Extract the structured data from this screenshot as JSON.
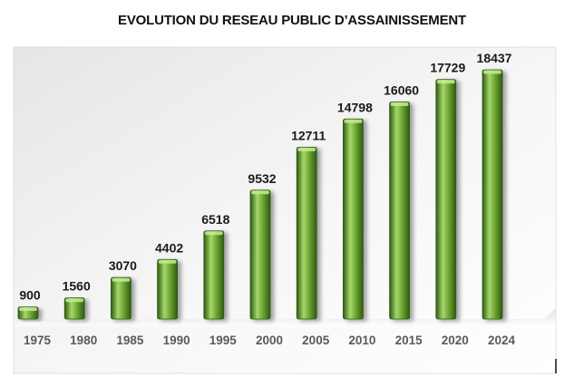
{
  "chart_data": {
    "type": "bar",
    "title": "EVOLUTION DU RESEAU PUBLIC D’ASSAINISSEMENT",
    "xlabel": "",
    "ylabel": "",
    "categories": [
      "1975",
      "1980",
      "1985",
      "1990",
      "1995",
      "2000",
      "2005",
      "2010",
      "2015",
      "2020",
      "2024"
    ],
    "values": [
      900,
      1560,
      3070,
      4402,
      6518,
      9532,
      12711,
      14798,
      16060,
      17729,
      18437
    ],
    "value_labels": [
      "900",
      "1560",
      "3070",
      "4402",
      "6518",
      "9532",
      "12711",
      "14798",
      "16060",
      "17729",
      "18437"
    ],
    "ylim": [
      0,
      18437
    ],
    "grid": false,
    "legend": "none",
    "colors": {
      "bar_light": "#a6d86a",
      "bar_mid": "#6aa22f",
      "bar_dark": "#2f5a12",
      "bar_top": "#c6ec94"
    }
  }
}
